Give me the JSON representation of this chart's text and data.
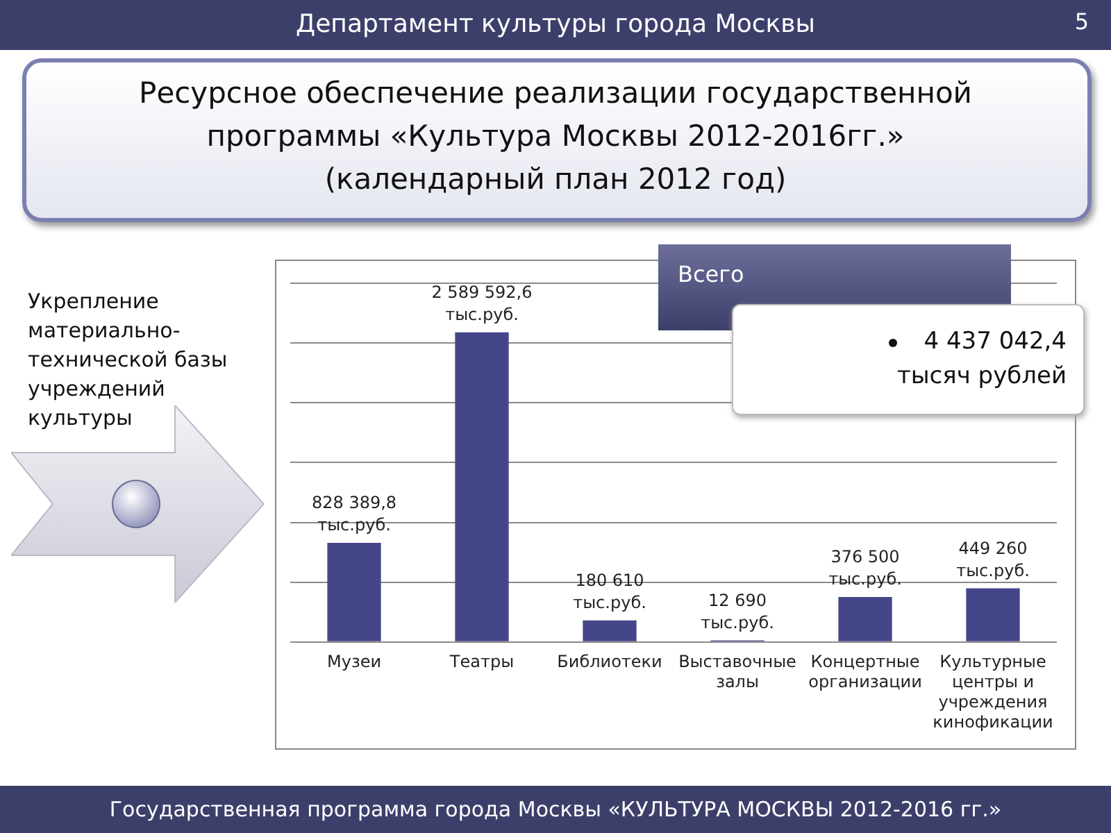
{
  "chart_data": {
    "type": "bar",
    "title": "Ресурсное обеспечение реализации государственной программы «Культура Москвы 2012-2016гг.»",
    "subtitle": "(календарный план 2012 год)",
    "categories": [
      "Музеи",
      "Театры",
      "Библиотеки",
      "Выставочные залы",
      "Концертные организации",
      "Культурные центры и учреждения кинофикации"
    ],
    "values": [
      828389.8,
      2589592.6,
      180610,
      12690,
      376500,
      449260
    ],
    "color": "#45468a",
    "value_labels": [
      "828 389,8 тыс.руб.",
      "2 589 592,6 тыс.руб.",
      "180 610 тыс.руб.",
      "12 690 тыс.руб.",
      "376 500 тыс.руб.",
      "449 260 тыс.руб."
    ],
    "ylim": [
      0,
      3000000
    ],
    "yticks": [
      {
        "value": 0,
        "label": null
      },
      {
        "value": 500000,
        "label": null
      },
      {
        "value": 1000000,
        "label": null
      },
      {
        "value": 1500000,
        "label": null
      },
      {
        "value": 2000000,
        "label": null
      },
      {
        "value": 2500000,
        "label": null
      },
      {
        "value": 3000000,
        "label": null
      }
    ],
    "grid": "y",
    "tick_labels": "x",
    "annotations": [
      "Департамент культуры города Москвы",
      "5",
      "Укрепление материально-технической базы учреждений культуры",
      "Всего",
      "4 437 042,4 тысяч рублей",
      "Государственная программа города Москвы «КУЛЬТУРА МОСКВЫ 2012-2016 гг.»"
    ]
  }
}
